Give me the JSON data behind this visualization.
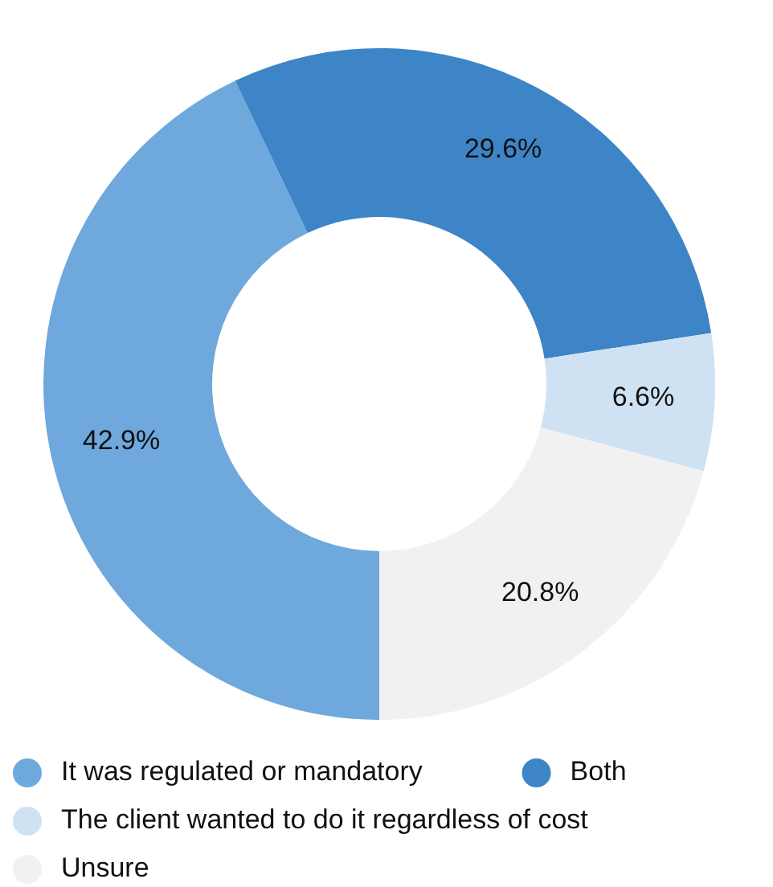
{
  "chart_data": {
    "type": "donut",
    "categories": [
      "It was regulated or mandatory",
      "Both",
      "The client wanted to do it regardless of cost",
      "Unsure"
    ],
    "values": [
      42.9,
      29.6,
      6.6,
      20.8
    ],
    "colors": [
      "#6fa8dc",
      "#3d85c6",
      "#cfe2f3",
      "#f1f1f1"
    ],
    "value_labels": [
      "42.9%",
      "29.6%",
      "6.6%",
      "20.8%"
    ],
    "legend": "bottom"
  }
}
